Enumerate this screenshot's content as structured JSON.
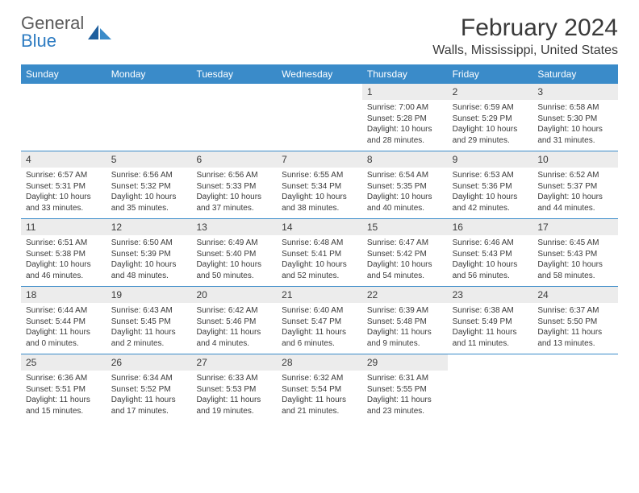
{
  "logo": {
    "line1": "General",
    "line2": "Blue"
  },
  "title": "February 2024",
  "location": "Walls, Mississippi, United States",
  "colors": {
    "header_bg": "#3a8bc9",
    "header_text": "#ffffff",
    "daynum_bg": "#ececec",
    "text": "#3a3a3a",
    "rule": "#3a8bc9",
    "logo_gray": "#5a5a5a",
    "logo_blue": "#2e7cc2"
  },
  "weekdays": [
    "Sunday",
    "Monday",
    "Tuesday",
    "Wednesday",
    "Thursday",
    "Friday",
    "Saturday"
  ],
  "weeks": [
    [
      {
        "n": "",
        "sr": "",
        "ss": "",
        "dl": ""
      },
      {
        "n": "",
        "sr": "",
        "ss": "",
        "dl": ""
      },
      {
        "n": "",
        "sr": "",
        "ss": "",
        "dl": ""
      },
      {
        "n": "",
        "sr": "",
        "ss": "",
        "dl": ""
      },
      {
        "n": "1",
        "sr": "Sunrise: 7:00 AM",
        "ss": "Sunset: 5:28 PM",
        "dl": "Daylight: 10 hours and 28 minutes."
      },
      {
        "n": "2",
        "sr": "Sunrise: 6:59 AM",
        "ss": "Sunset: 5:29 PM",
        "dl": "Daylight: 10 hours and 29 minutes."
      },
      {
        "n": "3",
        "sr": "Sunrise: 6:58 AM",
        "ss": "Sunset: 5:30 PM",
        "dl": "Daylight: 10 hours and 31 minutes."
      }
    ],
    [
      {
        "n": "4",
        "sr": "Sunrise: 6:57 AM",
        "ss": "Sunset: 5:31 PM",
        "dl": "Daylight: 10 hours and 33 minutes."
      },
      {
        "n": "5",
        "sr": "Sunrise: 6:56 AM",
        "ss": "Sunset: 5:32 PM",
        "dl": "Daylight: 10 hours and 35 minutes."
      },
      {
        "n": "6",
        "sr": "Sunrise: 6:56 AM",
        "ss": "Sunset: 5:33 PM",
        "dl": "Daylight: 10 hours and 37 minutes."
      },
      {
        "n": "7",
        "sr": "Sunrise: 6:55 AM",
        "ss": "Sunset: 5:34 PM",
        "dl": "Daylight: 10 hours and 38 minutes."
      },
      {
        "n": "8",
        "sr": "Sunrise: 6:54 AM",
        "ss": "Sunset: 5:35 PM",
        "dl": "Daylight: 10 hours and 40 minutes."
      },
      {
        "n": "9",
        "sr": "Sunrise: 6:53 AM",
        "ss": "Sunset: 5:36 PM",
        "dl": "Daylight: 10 hours and 42 minutes."
      },
      {
        "n": "10",
        "sr": "Sunrise: 6:52 AM",
        "ss": "Sunset: 5:37 PM",
        "dl": "Daylight: 10 hours and 44 minutes."
      }
    ],
    [
      {
        "n": "11",
        "sr": "Sunrise: 6:51 AM",
        "ss": "Sunset: 5:38 PM",
        "dl": "Daylight: 10 hours and 46 minutes."
      },
      {
        "n": "12",
        "sr": "Sunrise: 6:50 AM",
        "ss": "Sunset: 5:39 PM",
        "dl": "Daylight: 10 hours and 48 minutes."
      },
      {
        "n": "13",
        "sr": "Sunrise: 6:49 AM",
        "ss": "Sunset: 5:40 PM",
        "dl": "Daylight: 10 hours and 50 minutes."
      },
      {
        "n": "14",
        "sr": "Sunrise: 6:48 AM",
        "ss": "Sunset: 5:41 PM",
        "dl": "Daylight: 10 hours and 52 minutes."
      },
      {
        "n": "15",
        "sr": "Sunrise: 6:47 AM",
        "ss": "Sunset: 5:42 PM",
        "dl": "Daylight: 10 hours and 54 minutes."
      },
      {
        "n": "16",
        "sr": "Sunrise: 6:46 AM",
        "ss": "Sunset: 5:43 PM",
        "dl": "Daylight: 10 hours and 56 minutes."
      },
      {
        "n": "17",
        "sr": "Sunrise: 6:45 AM",
        "ss": "Sunset: 5:43 PM",
        "dl": "Daylight: 10 hours and 58 minutes."
      }
    ],
    [
      {
        "n": "18",
        "sr": "Sunrise: 6:44 AM",
        "ss": "Sunset: 5:44 PM",
        "dl": "Daylight: 11 hours and 0 minutes."
      },
      {
        "n": "19",
        "sr": "Sunrise: 6:43 AM",
        "ss": "Sunset: 5:45 PM",
        "dl": "Daylight: 11 hours and 2 minutes."
      },
      {
        "n": "20",
        "sr": "Sunrise: 6:42 AM",
        "ss": "Sunset: 5:46 PM",
        "dl": "Daylight: 11 hours and 4 minutes."
      },
      {
        "n": "21",
        "sr": "Sunrise: 6:40 AM",
        "ss": "Sunset: 5:47 PM",
        "dl": "Daylight: 11 hours and 6 minutes."
      },
      {
        "n": "22",
        "sr": "Sunrise: 6:39 AM",
        "ss": "Sunset: 5:48 PM",
        "dl": "Daylight: 11 hours and 9 minutes."
      },
      {
        "n": "23",
        "sr": "Sunrise: 6:38 AM",
        "ss": "Sunset: 5:49 PM",
        "dl": "Daylight: 11 hours and 11 minutes."
      },
      {
        "n": "24",
        "sr": "Sunrise: 6:37 AM",
        "ss": "Sunset: 5:50 PM",
        "dl": "Daylight: 11 hours and 13 minutes."
      }
    ],
    [
      {
        "n": "25",
        "sr": "Sunrise: 6:36 AM",
        "ss": "Sunset: 5:51 PM",
        "dl": "Daylight: 11 hours and 15 minutes."
      },
      {
        "n": "26",
        "sr": "Sunrise: 6:34 AM",
        "ss": "Sunset: 5:52 PM",
        "dl": "Daylight: 11 hours and 17 minutes."
      },
      {
        "n": "27",
        "sr": "Sunrise: 6:33 AM",
        "ss": "Sunset: 5:53 PM",
        "dl": "Daylight: 11 hours and 19 minutes."
      },
      {
        "n": "28",
        "sr": "Sunrise: 6:32 AM",
        "ss": "Sunset: 5:54 PM",
        "dl": "Daylight: 11 hours and 21 minutes."
      },
      {
        "n": "29",
        "sr": "Sunrise: 6:31 AM",
        "ss": "Sunset: 5:55 PM",
        "dl": "Daylight: 11 hours and 23 minutes."
      },
      {
        "n": "",
        "sr": "",
        "ss": "",
        "dl": ""
      },
      {
        "n": "",
        "sr": "",
        "ss": "",
        "dl": ""
      }
    ]
  ]
}
